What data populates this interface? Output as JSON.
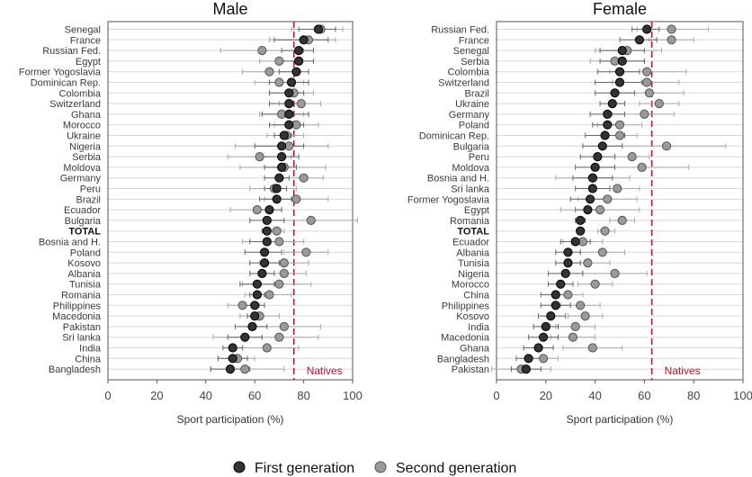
{
  "chart_data": [
    {
      "type": "scatter",
      "title": "Male",
      "xlabel": "Sport participation (%)",
      "xlim": [
        0,
        100
      ],
      "xticks": [
        "0",
        "20",
        "40",
        "60",
        "80",
        "100"
      ],
      "grid": "horizontal",
      "reference": {
        "label": "Natives",
        "value": 76,
        "color": "#c8102e"
      },
      "categories": [
        "Senegal",
        "France",
        "Russian Fed.",
        "Egypt",
        "Former Yogoslavia",
        "Dominican Rep.",
        "Colombia",
        "Switzerland",
        "Ghana",
        "Morocco",
        "Ukraine",
        "Nigeria",
        "Serbia",
        "Moldova",
        "Germany",
        "Peru",
        "Brazil",
        "Ecuador",
        "Bulgaria",
        "TOTAL",
        "Bosnia and H.",
        "Poland",
        "Kosovo",
        "Albania",
        "Tunisia",
        "Romania",
        "Philippines",
        "Macedonia",
        "Pakistan",
        "Sri lanka",
        "India",
        "China",
        "Bangladesh"
      ],
      "series": [
        {
          "name": "First generation",
          "color": "#333333",
          "values": [
            86,
            80,
            78,
            78,
            77,
            75,
            74,
            74,
            74,
            74,
            72,
            71,
            71,
            71,
            70,
            69,
            69,
            66,
            65,
            65,
            65,
            64,
            64,
            63,
            61,
            61,
            60,
            60,
            59,
            56,
            51,
            51,
            50
          ],
          "lower": [
            78,
            68,
            71,
            71,
            70,
            66,
            66,
            66,
            63,
            66,
            68,
            60,
            63,
            64,
            64,
            64,
            62,
            60,
            58,
            63,
            58,
            56,
            58,
            58,
            54,
            58,
            56,
            57,
            52,
            49,
            47,
            45,
            42
          ],
          "upper": [
            93,
            90,
            84,
            84,
            82,
            82,
            80,
            80,
            82,
            80,
            75,
            80,
            78,
            77,
            74,
            73,
            75,
            71,
            72,
            66,
            71,
            71,
            70,
            68,
            68,
            64,
            64,
            63,
            65,
            63,
            55,
            57,
            58
          ]
        },
        {
          "name": "Second generation",
          "color": "#9a9a9a",
          "values": [
            87,
            82,
            63,
            70,
            66,
            70,
            76,
            79,
            71,
            77,
            73,
            74,
            62,
            72,
            80,
            68,
            77,
            61,
            83,
            69,
            70,
            81,
            72,
            72,
            70,
            66,
            55,
            62,
            72,
            70,
            65,
            53,
            56
          ],
          "lower": [
            75,
            66,
            46,
            62,
            55,
            60,
            66,
            70,
            62,
            68,
            65,
            52,
            49,
            54,
            71,
            58,
            64,
            50,
            64,
            66,
            55,
            72,
            62,
            63,
            55,
            56,
            49,
            54,
            59,
            43,
            51,
            45,
            42
          ],
          "upper": [
            96,
            93,
            80,
            78,
            77,
            80,
            84,
            87,
            80,
            86,
            80,
            90,
            75,
            89,
            88,
            77,
            90,
            71,
            102,
            72,
            80,
            90,
            82,
            81,
            83,
            75,
            62,
            70,
            87,
            86,
            78,
            60,
            72
          ]
        }
      ]
    },
    {
      "type": "scatter",
      "title": "Female",
      "xlabel": "Sport participation (%)",
      "xlim": [
        0,
        100
      ],
      "xticks": [
        "0",
        "20",
        "40",
        "60",
        "80",
        "100"
      ],
      "grid": "horizontal",
      "reference": {
        "label": "Natives",
        "value": 63,
        "color": "#c8102e"
      },
      "categories": [
        "Russian Fed.",
        "France",
        "Senegal",
        "Serbia",
        "Colombia",
        "Switzerland",
        "Brazil",
        "Ukraine",
        "Germany",
        "Poland",
        "Dominican Rep.",
        "Bulgaria",
        "Peru",
        "Moldova",
        "Bosnia and H.",
        "Sri lanka",
        "Former Yogoslavia",
        "Egypt",
        "Romania",
        "TOTAL",
        "Ecuador",
        "Albania",
        "Tunisia",
        "Nigeria",
        "Morocco",
        "China",
        "Philippines",
        "Kosovo",
        "India",
        "Macedonia",
        "Ghana",
        "Bangladesh",
        "Pakistan"
      ],
      "series": [
        {
          "name": "First generation",
          "color": "#333333",
          "values": [
            61,
            58,
            51,
            51,
            50,
            50,
            48,
            47,
            45,
            45,
            44,
            43,
            41,
            40,
            39,
            39,
            38,
            37,
            34,
            34,
            32,
            29,
            29,
            28,
            26,
            24,
            24,
            22,
            20,
            19,
            17,
            13,
            12
          ],
          "lower": [
            55,
            50,
            42,
            42,
            41,
            40,
            40,
            42,
            38,
            39,
            36,
            35,
            34,
            32,
            31,
            32,
            30,
            32,
            32,
            33,
            26,
            24,
            24,
            21,
            21,
            18,
            18,
            17,
            15,
            13,
            11,
            8,
            6
          ],
          "upper": [
            66,
            65,
            60,
            60,
            58,
            59,
            56,
            52,
            52,
            51,
            52,
            51,
            48,
            48,
            47,
            46,
            46,
            43,
            36,
            35,
            38,
            34,
            34,
            35,
            31,
            30,
            30,
            28,
            25,
            25,
            23,
            18,
            18
          ]
        },
        {
          "name": "Second generation",
          "color": "#9a9a9a",
          "values": [
            71,
            71,
            53,
            48,
            61,
            61,
            62,
            66,
            60,
            50,
            50,
            69,
            55,
            59,
            39,
            49,
            45,
            42,
            51,
            44,
            35,
            43,
            37,
            48,
            40,
            29,
            34,
            36,
            32,
            31,
            39,
            19,
            10
          ],
          "lower": [
            57,
            62,
            40,
            38,
            46,
            47,
            48,
            58,
            47,
            41,
            43,
            44,
            48,
            41,
            24,
            40,
            33,
            26,
            46,
            41,
            27,
            34,
            28,
            35,
            33,
            23,
            26,
            29,
            24,
            22,
            27,
            13,
            -2
          ],
          "upper": [
            86,
            80,
            67,
            60,
            77,
            74,
            76,
            74,
            72,
            59,
            57,
            93,
            62,
            78,
            54,
            58,
            57,
            58,
            56,
            48,
            43,
            52,
            46,
            61,
            47,
            35,
            42,
            43,
            40,
            40,
            51,
            25,
            22
          ]
        }
      ]
    }
  ],
  "legend": {
    "placement": "bottom",
    "items": [
      {
        "label": "First generation",
        "color": "#333333"
      },
      {
        "label": "Second generation",
        "color": "#9a9a9a"
      }
    ]
  }
}
